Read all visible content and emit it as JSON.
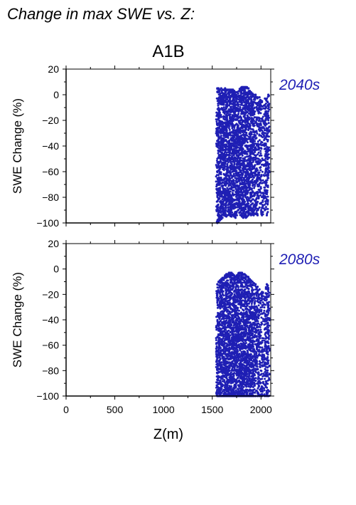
{
  "figure": {
    "title": "Change in max SWE vs. Z:",
    "scenario": "A1B",
    "xlabel": "Z(m)"
  },
  "colors": {
    "points": "#1f1fb4",
    "period_label": "#1f1fb4",
    "axis": "#000000"
  },
  "chart_data": [
    {
      "type": "scatter",
      "panel": "2040s",
      "title": "A1B",
      "period_label": "2040s",
      "xlabel": "",
      "ylabel": "SWE Change (%)",
      "xlim": [
        0,
        2100
      ],
      "ylim": [
        -100,
        20
      ],
      "xticks": [
        0,
        500,
        1000,
        1500,
        2000
      ],
      "yticks": [
        -100,
        -80,
        -60,
        -40,
        -20,
        0,
        20
      ],
      "grid": false,
      "legend": "none",
      "point_columns": [
        {
          "x": 1552,
          "ymin": -100,
          "ymax": 5
        },
        {
          "x": 1565,
          "ymin": -99,
          "ymax": 5
        },
        {
          "x": 1578,
          "ymin": -98,
          "ymax": 4
        },
        {
          "x": 1592,
          "ymin": -97,
          "ymax": 5
        },
        {
          "x": 1605,
          "ymin": -96,
          "ymax": 4
        },
        {
          "x": 1618,
          "ymin": -94,
          "ymax": 4
        },
        {
          "x": 1632,
          "ymin": -94,
          "ymax": 5
        },
        {
          "x": 1645,
          "ymin": -95,
          "ymax": 4
        },
        {
          "x": 1658,
          "ymin": -94,
          "ymax": 4
        },
        {
          "x": 1672,
          "ymin": -93,
          "ymax": 4
        },
        {
          "x": 1685,
          "ymin": -94,
          "ymax": 4
        },
        {
          "x": 1698,
          "ymin": -95,
          "ymax": 4
        },
        {
          "x": 1712,
          "ymin": -94,
          "ymax": 4
        },
        {
          "x": 1725,
          "ymin": -95,
          "ymax": 3
        },
        {
          "x": 1738,
          "ymin": -96,
          "ymax": 2
        },
        {
          "x": 1752,
          "ymin": -94,
          "ymax": 2
        },
        {
          "x": 1765,
          "ymin": -90,
          "ymax": 1
        },
        {
          "x": 1778,
          "ymin": -92,
          "ymax": 3
        },
        {
          "x": 1792,
          "ymin": -94,
          "ymax": 5
        },
        {
          "x": 1805,
          "ymin": -95,
          "ymax": 6
        },
        {
          "x": 1818,
          "ymin": -96,
          "ymax": 6
        },
        {
          "x": 1832,
          "ymin": -95,
          "ymax": 6
        },
        {
          "x": 1845,
          "ymin": -96,
          "ymax": 6
        },
        {
          "x": 1858,
          "ymin": -95,
          "ymax": 5
        },
        {
          "x": 1872,
          "ymin": -94,
          "ymax": 5
        },
        {
          "x": 1885,
          "ymin": -93,
          "ymax": 3
        },
        {
          "x": 1898,
          "ymin": -94,
          "ymax": 2
        },
        {
          "x": 1912,
          "ymin": -93,
          "ymax": 1
        },
        {
          "x": 1925,
          "ymin": -94,
          "ymax": 0
        },
        {
          "x": 1945,
          "ymin": -93,
          "ymax": 0
        },
        {
          "x": 1965,
          "ymin": -94,
          "ymax": -2
        },
        {
          "x": 1985,
          "ymin": -88,
          "ymax": -2
        },
        {
          "x": 2010,
          "ymin": -94,
          "ymax": -5
        },
        {
          "x": 2040,
          "ymin": -90,
          "ymax": -3
        },
        {
          "x": 2060,
          "ymin": -94,
          "ymax": -3
        },
        {
          "x": 2075,
          "ymin": -65,
          "ymax": 0
        }
      ]
    },
    {
      "type": "scatter",
      "panel": "2080s",
      "title": "",
      "period_label": "2080s",
      "xlabel": "Z(m)",
      "ylabel": "SWE Change (%)",
      "xlim": [
        0,
        2100
      ],
      "ylim": [
        -100,
        20
      ],
      "xticks": [
        0,
        500,
        1000,
        1500,
        2000
      ],
      "yticks": [
        -100,
        -80,
        -60,
        -40,
        -20,
        0,
        20
      ],
      "grid": false,
      "legend": "none",
      "point_columns": [
        {
          "x": 1552,
          "ymin": -100,
          "ymax": -12
        },
        {
          "x": 1565,
          "ymin": -100,
          "ymax": -10
        },
        {
          "x": 1578,
          "ymin": -100,
          "ymax": -9
        },
        {
          "x": 1592,
          "ymin": -100,
          "ymax": -8
        },
        {
          "x": 1605,
          "ymin": -100,
          "ymax": -7
        },
        {
          "x": 1618,
          "ymin": -100,
          "ymax": -7
        },
        {
          "x": 1632,
          "ymin": -100,
          "ymax": -5
        },
        {
          "x": 1645,
          "ymin": -100,
          "ymax": -4
        },
        {
          "x": 1658,
          "ymin": -100,
          "ymax": -4
        },
        {
          "x": 1672,
          "ymin": -100,
          "ymax": -3
        },
        {
          "x": 1685,
          "ymin": -100,
          "ymax": -3
        },
        {
          "x": 1698,
          "ymin": -100,
          "ymax": -3
        },
        {
          "x": 1712,
          "ymin": -100,
          "ymax": -4
        },
        {
          "x": 1725,
          "ymin": -100,
          "ymax": -5
        },
        {
          "x": 1738,
          "ymin": -100,
          "ymax": -6
        },
        {
          "x": 1752,
          "ymin": -100,
          "ymax": -5
        },
        {
          "x": 1765,
          "ymin": -100,
          "ymax": -4
        },
        {
          "x": 1778,
          "ymin": -100,
          "ymax": -3
        },
        {
          "x": 1792,
          "ymin": -100,
          "ymax": -3
        },
        {
          "x": 1805,
          "ymin": -100,
          "ymax": -3
        },
        {
          "x": 1818,
          "ymin": -100,
          "ymax": -4
        },
        {
          "x": 1832,
          "ymin": -100,
          "ymax": -4
        },
        {
          "x": 1845,
          "ymin": -100,
          "ymax": -5
        },
        {
          "x": 1858,
          "ymin": -100,
          "ymax": -6
        },
        {
          "x": 1872,
          "ymin": -100,
          "ymax": -7
        },
        {
          "x": 1885,
          "ymin": -100,
          "ymax": -8
        },
        {
          "x": 1898,
          "ymin": -100,
          "ymax": -9
        },
        {
          "x": 1912,
          "ymin": -100,
          "ymax": -10
        },
        {
          "x": 1925,
          "ymin": -100,
          "ymax": -11
        },
        {
          "x": 1945,
          "ymin": -100,
          "ymax": -12
        },
        {
          "x": 1965,
          "ymin": -100,
          "ymax": -14
        },
        {
          "x": 1985,
          "ymin": -100,
          "ymax": -16
        },
        {
          "x": 2010,
          "ymin": -100,
          "ymax": -18
        },
        {
          "x": 2040,
          "ymin": -100,
          "ymax": -22
        },
        {
          "x": 2060,
          "ymin": -100,
          "ymax": -12
        },
        {
          "x": 2075,
          "ymin": -100,
          "ymax": -15
        }
      ]
    }
  ]
}
